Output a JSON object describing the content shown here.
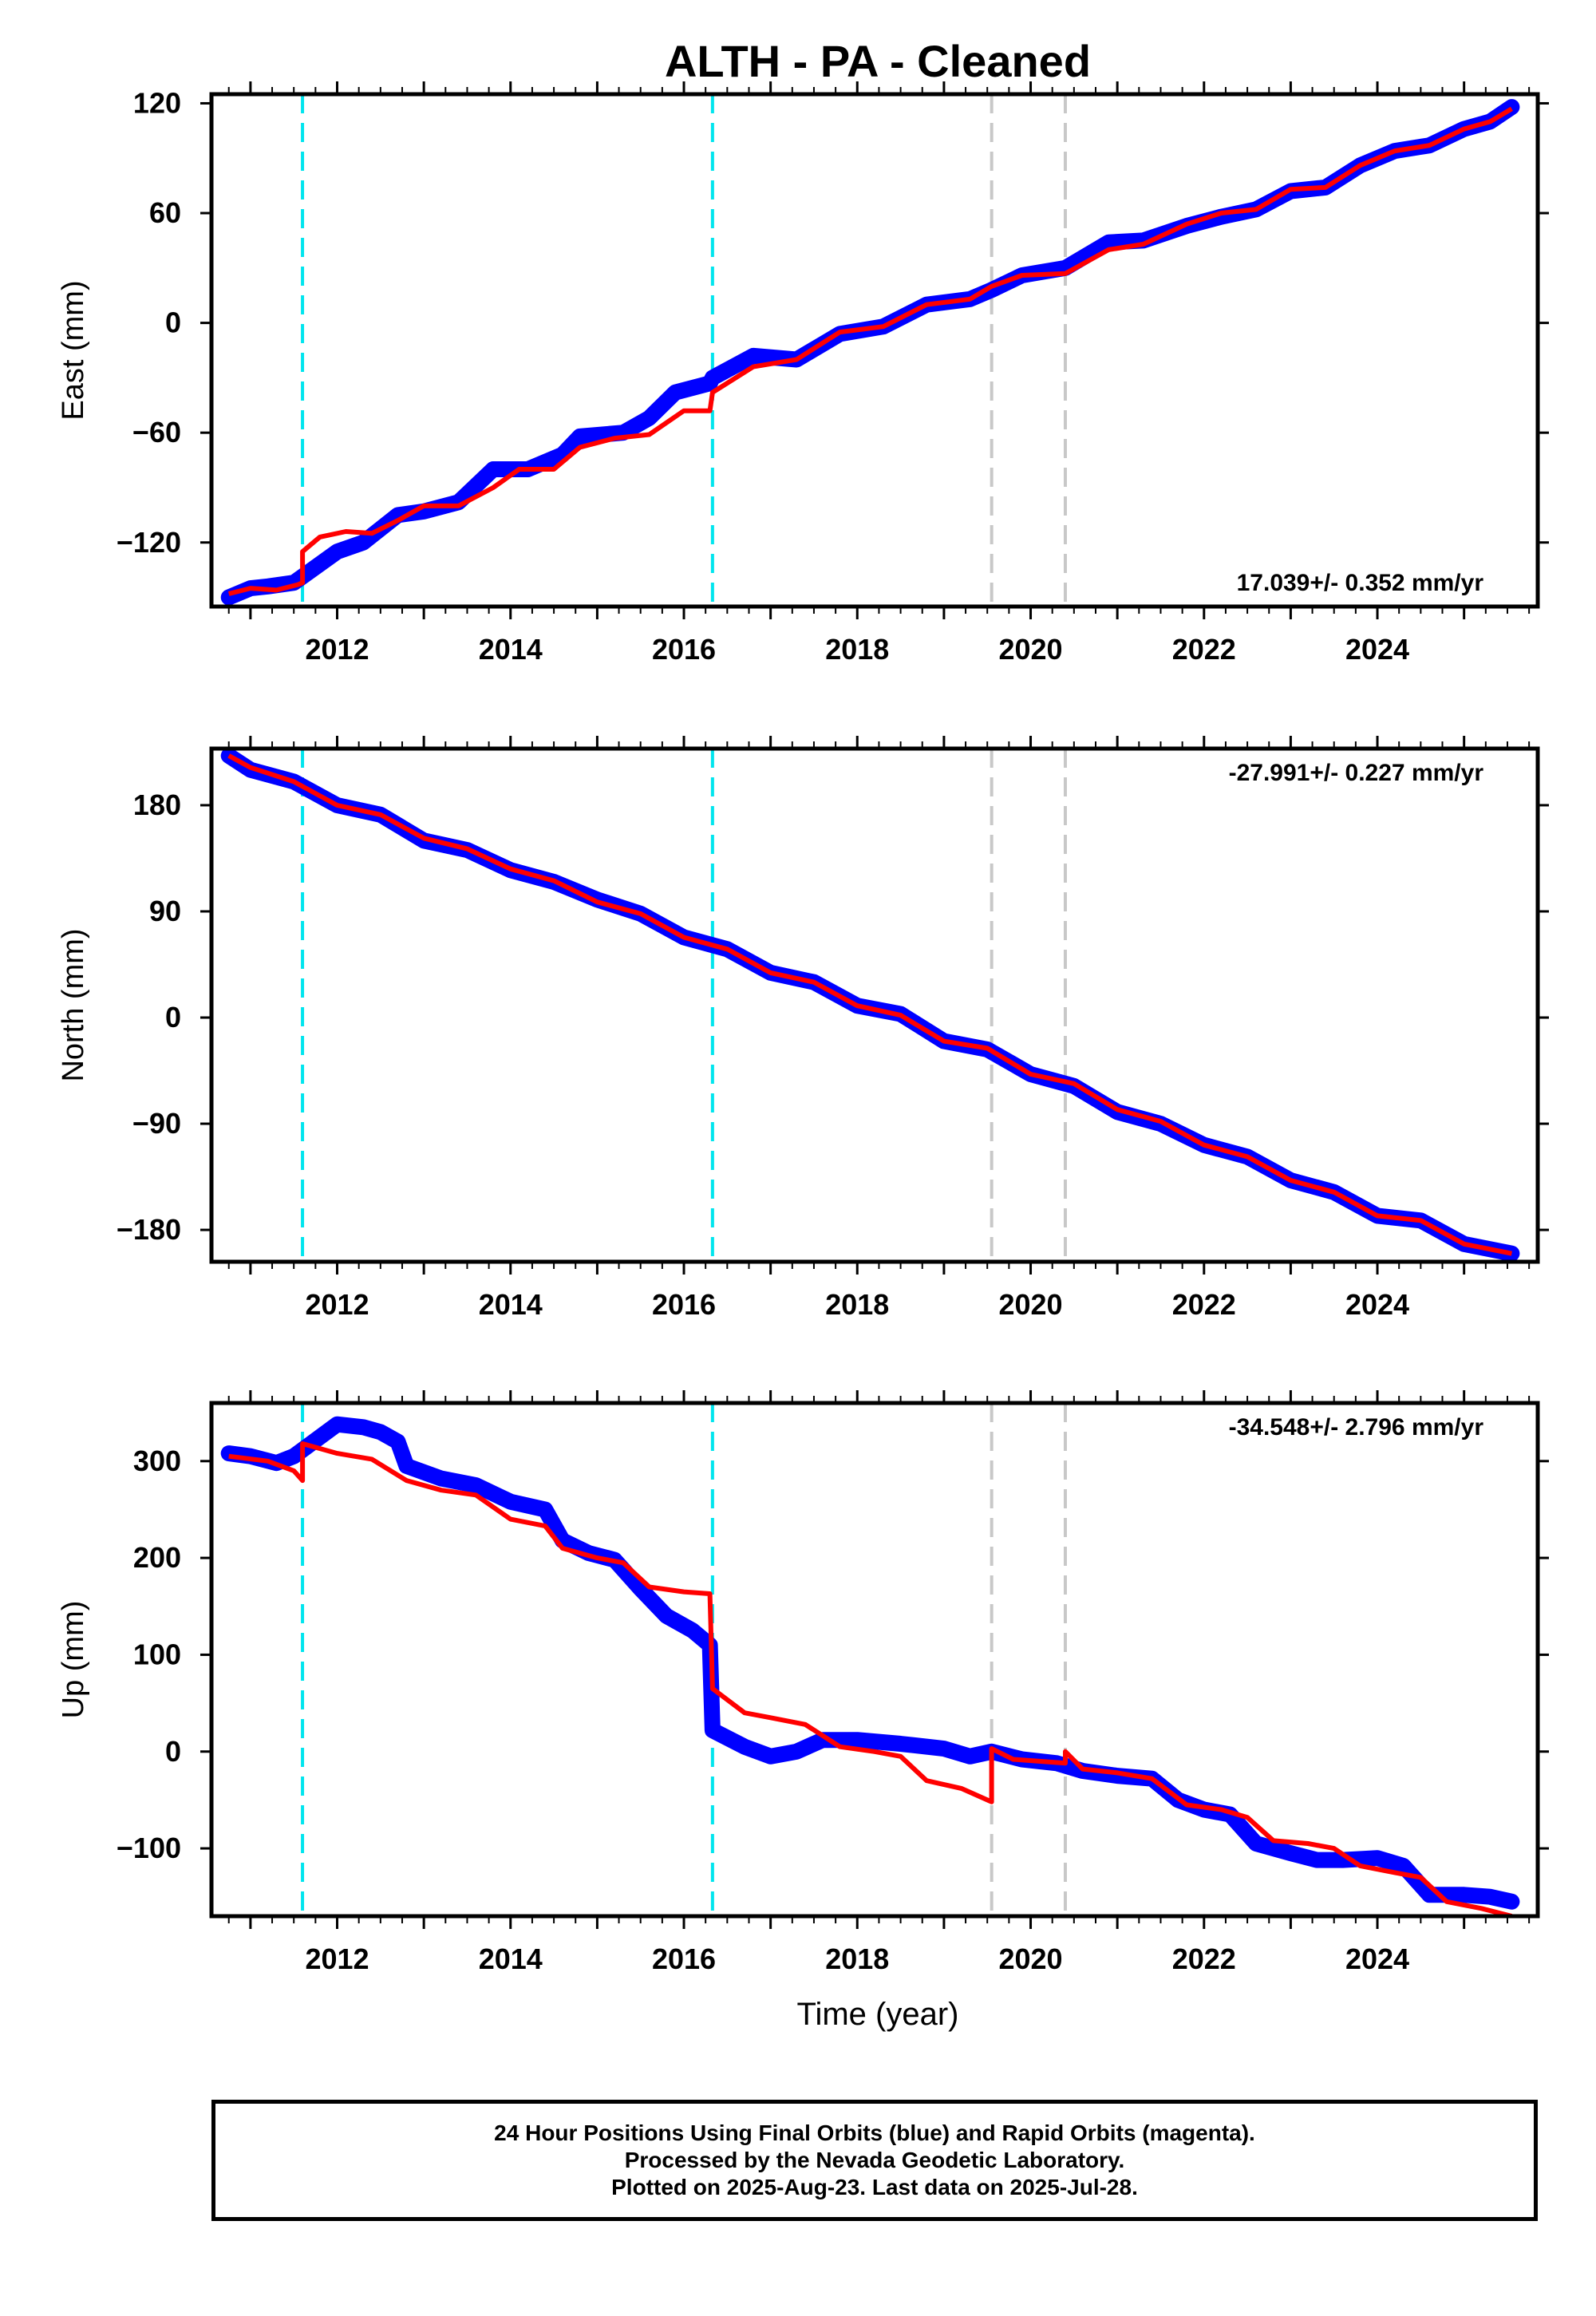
{
  "title": "ALTH  - PA - Cleaned",
  "xlabel": "Time (year)",
  "colors": {
    "final_orbits": "#0000ff",
    "model": "#ff0000",
    "steps_equipment": "#00e5ee",
    "steps_other": "#c8c8c8"
  },
  "caption": [
    "24 Hour Positions Using Final Orbits (blue) and Rapid Orbits (magenta).",
    "Processed by the Nevada Geodetic Laboratory.",
    "Plotted on 2025-Aug-23. Last data on 2025-Jul-28."
  ],
  "chart_data": [
    {
      "type": "scatter",
      "ylabel": "East (mm)",
      "rate_label": "17.039+/- 0.352 mm/yr",
      "xlim": [
        2010.55,
        2025.85
      ],
      "ylim": [
        -155,
        125
      ],
      "xticks": [
        2012,
        2014,
        2016,
        2018,
        2020,
        2022,
        2024
      ],
      "yticks": [
        -120,
        -60,
        0,
        60,
        120
      ],
      "vlines_cyan": [
        2011.6,
        2016.33
      ],
      "vlines_gray": [
        2019.55,
        2020.4
      ],
      "series": [
        {
          "points": [
            [
              2010.75,
              -150
            ],
            [
              2011.0,
              -145
            ],
            [
              2011.2,
              -144
            ],
            [
              2011.5,
              -142
            ],
            [
              2012.0,
              -125
            ],
            [
              2012.3,
              -120
            ],
            [
              2012.7,
              -105
            ],
            [
              2013.0,
              -103
            ],
            [
              2013.4,
              -98
            ],
            [
              2013.8,
              -80
            ],
            [
              2014.2,
              -80
            ],
            [
              2014.6,
              -72
            ],
            [
              2014.8,
              -62
            ],
            [
              2015.3,
              -60
            ],
            [
              2015.6,
              -52
            ],
            [
              2015.9,
              -38
            ],
            [
              2016.3,
              -33
            ],
            [
              2016.33,
              -30
            ],
            [
              2016.8,
              -18
            ],
            [
              2017.3,
              -20
            ],
            [
              2017.8,
              -6
            ],
            [
              2018.3,
              -2
            ],
            [
              2018.8,
              10
            ],
            [
              2019.3,
              13
            ],
            [
              2019.55,
              18
            ],
            [
              2019.9,
              26
            ],
            [
              2020.4,
              30
            ],
            [
              2020.9,
              44
            ],
            [
              2021.3,
              45
            ],
            [
              2021.8,
              53
            ],
            [
              2022.2,
              58
            ],
            [
              2022.6,
              62
            ],
            [
              2023.0,
              72
            ],
            [
              2023.4,
              74
            ],
            [
              2023.8,
              86
            ],
            [
              2024.2,
              94
            ],
            [
              2024.6,
              97
            ],
            [
              2025.0,
              106
            ],
            [
              2025.3,
              110
            ],
            [
              2025.55,
              118
            ]
          ]
        },
        {
          "points": [
            [
              2010.75,
              -148
            ],
            [
              2011.0,
              -145
            ],
            [
              2011.3,
              -146
            ],
            [
              2011.55,
              -143
            ],
            [
              2011.6,
              -142
            ],
            [
              2011.6,
              -125
            ],
            [
              2011.8,
              -117
            ],
            [
              2012.1,
              -114
            ],
            [
              2012.4,
              -115
            ],
            [
              2012.7,
              -108
            ],
            [
              2013.0,
              -100
            ],
            [
              2013.4,
              -100
            ],
            [
              2013.8,
              -90
            ],
            [
              2014.1,
              -80
            ],
            [
              2014.5,
              -80
            ],
            [
              2014.8,
              -68
            ],
            [
              2015.2,
              -63
            ],
            [
              2015.6,
              -61
            ],
            [
              2016.0,
              -48
            ],
            [
              2016.3,
              -48
            ],
            [
              2016.33,
              -38
            ],
            [
              2016.8,
              -24
            ],
            [
              2017.3,
              -20
            ],
            [
              2017.8,
              -5
            ],
            [
              2018.3,
              -2
            ],
            [
              2018.8,
              10
            ],
            [
              2019.3,
              13
            ],
            [
              2019.55,
              20
            ],
            [
              2019.9,
              26
            ],
            [
              2020.4,
              27
            ],
            [
              2020.9,
              40
            ],
            [
              2021.3,
              43
            ],
            [
              2021.8,
              54
            ],
            [
              2022.2,
              60
            ],
            [
              2022.6,
              62
            ],
            [
              2023.0,
              73
            ],
            [
              2023.4,
              74
            ],
            [
              2023.8,
              86
            ],
            [
              2024.2,
              94
            ],
            [
              2024.6,
              97
            ],
            [
              2025.0,
              106
            ],
            [
              2025.3,
              110
            ],
            [
              2025.55,
              117
            ]
          ]
        }
      ]
    },
    {
      "type": "scatter",
      "ylabel": "North (mm)",
      "rate_label": "-27.991+/- 0.227 mm/yr",
      "xlim": [
        2010.55,
        2025.85
      ],
      "ylim": [
        -207,
        228
      ],
      "xticks": [
        2012,
        2014,
        2016,
        2018,
        2020,
        2022,
        2024
      ],
      "yticks": [
        -180,
        -90,
        0,
        90,
        180
      ],
      "vlines_cyan": [
        2011.6,
        2016.33
      ],
      "vlines_gray": [
        2019.55,
        2020.4
      ],
      "series": [
        {
          "points": [
            [
              2010.75,
              222
            ],
            [
              2011.0,
              210
            ],
            [
              2011.5,
              200
            ],
            [
              2012.0,
              180
            ],
            [
              2012.5,
              172
            ],
            [
              2013.0,
              150
            ],
            [
              2013.5,
              142
            ],
            [
              2014.0,
              125
            ],
            [
              2014.5,
              115
            ],
            [
              2015.0,
              100
            ],
            [
              2015.5,
              88
            ],
            [
              2016.0,
              68
            ],
            [
              2016.5,
              58
            ],
            [
              2017.0,
              38
            ],
            [
              2017.5,
              30
            ],
            [
              2018.0,
              10
            ],
            [
              2018.5,
              3
            ],
            [
              2019.0,
              -20
            ],
            [
              2019.5,
              -27
            ],
            [
              2020.0,
              -48
            ],
            [
              2020.5,
              -58
            ],
            [
              2021.0,
              -80
            ],
            [
              2021.5,
              -90
            ],
            [
              2022.0,
              -108
            ],
            [
              2022.5,
              -118
            ],
            [
              2023.0,
              -138
            ],
            [
              2023.5,
              -148
            ],
            [
              2024.0,
              -168
            ],
            [
              2024.5,
              -172
            ],
            [
              2025.0,
              -192
            ],
            [
              2025.55,
              -200
            ]
          ]
        },
        {
          "points": [
            [
              2010.75,
              222
            ],
            [
              2011.0,
              212
            ],
            [
              2011.5,
              200
            ],
            [
              2012.0,
              180
            ],
            [
              2012.5,
              172
            ],
            [
              2013.0,
              152
            ],
            [
              2013.5,
              143
            ],
            [
              2014.0,
              126
            ],
            [
              2014.5,
              116
            ],
            [
              2015.0,
              98
            ],
            [
              2015.5,
              88
            ],
            [
              2016.0,
              68
            ],
            [
              2016.5,
              58
            ],
            [
              2017.0,
              38
            ],
            [
              2017.5,
              30
            ],
            [
              2018.0,
              10
            ],
            [
              2018.5,
              2
            ],
            [
              2019.0,
              -20
            ],
            [
              2019.5,
              -26
            ],
            [
              2020.0,
              -48
            ],
            [
              2020.5,
              -56
            ],
            [
              2021.0,
              -78
            ],
            [
              2021.5,
              -88
            ],
            [
              2022.0,
              -108
            ],
            [
              2022.5,
              -118
            ],
            [
              2023.0,
              -138
            ],
            [
              2023.5,
              -148
            ],
            [
              2024.0,
              -168
            ],
            [
              2024.5,
              -172
            ],
            [
              2025.0,
              -192
            ],
            [
              2025.55,
              -200
            ]
          ]
        }
      ]
    },
    {
      "type": "scatter",
      "ylabel": "Up (mm)",
      "rate_label": "-34.548+/- 2.796 mm/yr",
      "xlim": [
        2010.55,
        2025.85
      ],
      "ylim": [
        -170,
        360
      ],
      "xticks": [
        2012,
        2014,
        2016,
        2018,
        2020,
        2022,
        2024
      ],
      "yticks": [
        -100,
        0,
        100,
        200,
        300
      ],
      "vlines_cyan": [
        2011.6,
        2016.33
      ],
      "vlines_gray": [
        2019.55,
        2020.4
      ],
      "series": [
        {
          "points": [
            [
              2010.75,
              308
            ],
            [
              2011.0,
              305
            ],
            [
              2011.3,
              298
            ],
            [
              2011.5,
              305
            ],
            [
              2012.0,
              338
            ],
            [
              2012.3,
              335
            ],
            [
              2012.5,
              330
            ],
            [
              2012.7,
              320
            ],
            [
              2012.8,
              295
            ],
            [
              2013.2,
              282
            ],
            [
              2013.6,
              275
            ],
            [
              2014.0,
              258
            ],
            [
              2014.4,
              250
            ],
            [
              2014.6,
              218
            ],
            [
              2014.9,
              205
            ],
            [
              2015.2,
              198
            ],
            [
              2015.5,
              168
            ],
            [
              2015.8,
              140
            ],
            [
              2016.1,
              125
            ],
            [
              2016.3,
              110
            ],
            [
              2016.33,
              22
            ],
            [
              2016.7,
              5
            ],
            [
              2017.0,
              -5
            ],
            [
              2017.3,
              0
            ],
            [
              2017.6,
              12
            ],
            [
              2018.0,
              12
            ],
            [
              2018.5,
              8
            ],
            [
              2019.0,
              3
            ],
            [
              2019.3,
              -5
            ],
            [
              2019.55,
              0
            ],
            [
              2019.9,
              -8
            ],
            [
              2020.3,
              -12
            ],
            [
              2020.6,
              -20
            ],
            [
              2021.0,
              -25
            ],
            [
              2021.4,
              -28
            ],
            [
              2021.7,
              -50
            ],
            [
              2022.0,
              -60
            ],
            [
              2022.3,
              -65
            ],
            [
              2022.6,
              -95
            ],
            [
              2023.0,
              -105
            ],
            [
              2023.3,
              -112
            ],
            [
              2023.6,
              -112
            ],
            [
              2024.0,
              -110
            ],
            [
              2024.3,
              -118
            ],
            [
              2024.6,
              -148
            ],
            [
              2025.0,
              -148
            ],
            [
              2025.3,
              -150
            ],
            [
              2025.55,
              -155
            ]
          ]
        },
        {
          "points": [
            [
              2010.75,
              305
            ],
            [
              2011.2,
              300
            ],
            [
              2011.5,
              290
            ],
            [
              2011.6,
              280
            ],
            [
              2011.6,
              318
            ],
            [
              2012.0,
              308
            ],
            [
              2012.4,
              302
            ],
            [
              2012.8,
              280
            ],
            [
              2013.2,
              270
            ],
            [
              2013.6,
              265
            ],
            [
              2014.0,
              240
            ],
            [
              2014.4,
              233
            ],
            [
              2014.6,
              210
            ],
            [
              2015.0,
              200
            ],
            [
              2015.3,
              195
            ],
            [
              2015.6,
              170
            ],
            [
              2016.0,
              165
            ],
            [
              2016.3,
              163
            ],
            [
              2016.33,
              65
            ],
            [
              2016.7,
              40
            ],
            [
              2017.0,
              35
            ],
            [
              2017.4,
              28
            ],
            [
              2017.8,
              5
            ],
            [
              2018.2,
              0
            ],
            [
              2018.5,
              -5
            ],
            [
              2018.8,
              -30
            ],
            [
              2019.2,
              -38
            ],
            [
              2019.55,
              -52
            ],
            [
              2019.55,
              3
            ],
            [
              2019.8,
              -8
            ],
            [
              2020.1,
              -10
            ],
            [
              2020.4,
              -12
            ],
            [
              2020.4,
              0
            ],
            [
              2020.6,
              -18
            ],
            [
              2021.0,
              -22
            ],
            [
              2021.4,
              -28
            ],
            [
              2021.8,
              -55
            ],
            [
              2022.2,
              -60
            ],
            [
              2022.5,
              -68
            ],
            [
              2022.8,
              -92
            ],
            [
              2023.2,
              -95
            ],
            [
              2023.5,
              -100
            ],
            [
              2023.8,
              -118
            ],
            [
              2024.2,
              -125
            ],
            [
              2024.5,
              -130
            ],
            [
              2024.8,
              -155
            ],
            [
              2025.2,
              -162
            ],
            [
              2025.55,
              -170
            ]
          ]
        }
      ]
    }
  ]
}
